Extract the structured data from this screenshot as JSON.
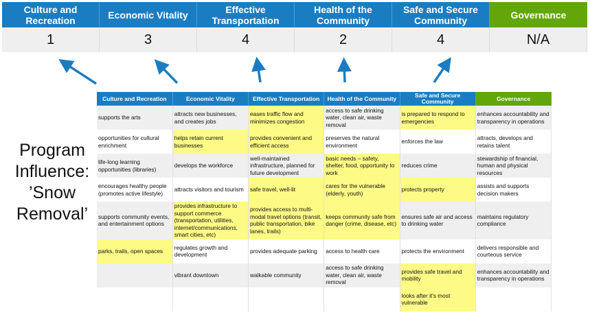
{
  "scores": {
    "headers": [
      "Culture and Recreation",
      "Economic Vitality",
      "Effective Transportation",
      "Health of the Community",
      "Safe and Secure Community",
      "Governance"
    ],
    "values": [
      "1",
      "3",
      "4",
      "2",
      "4",
      "N/A"
    ]
  },
  "program_label": {
    "line1": "Program",
    "line2": "Influence:",
    "line3": "’Snow",
    "line4": "Removal’"
  },
  "colors": {
    "blue_header": "#1b7dc1",
    "green_header": "#62a60a",
    "highlight": "#fdfa86",
    "row_shade": "#efefef",
    "arrow": "#1b7dc1"
  },
  "table": {
    "headers": [
      "Culture and Recreation",
      "Economic Vitality",
      "Effective Transportation",
      "Health of the Community",
      "Safe and Secure Community",
      "Governance"
    ],
    "rows": [
      [
        {
          "t": "supports the arts",
          "hl": false
        },
        {
          "t": "attracts new businesses, and creates jobs",
          "hl": false
        },
        {
          "t": "eases traffic flow and minimizes congestion",
          "hl": true
        },
        {
          "t": "access to safe drinking water, clean air, waste removal",
          "hl": false
        },
        {
          "t": "is prepared to respond to emergencies",
          "hl": true
        },
        {
          "t": "enhances accountability and transparency in operations",
          "hl": false
        }
      ],
      [
        {
          "t": "opportunities for cultural enrichment",
          "hl": false
        },
        {
          "t": "helps retain current businesses",
          "hl": true
        },
        {
          "t": "provides convenient and efficient access",
          "hl": true
        },
        {
          "t": "preserves the natural environment",
          "hl": false
        },
        {
          "t": "enforces the law",
          "hl": false
        },
        {
          "t": "attracts, develops and retains talent",
          "hl": false
        }
      ],
      [
        {
          "t": "life-long learning opportunities (libraries)",
          "hl": false
        },
        {
          "t": "develops the workforce",
          "hl": false
        },
        {
          "t": "well-maintained infrastructure, planned for future development",
          "hl": false
        },
        {
          "t": "basic needs – safety, shelter, food, opportunity to work",
          "hl": true
        },
        {
          "t": "reduces crime",
          "hl": false
        },
        {
          "t": "stewardship of financial, human and physical resources",
          "hl": false
        }
      ],
      [
        {
          "t": "encourages healthy people (promotes active lifestyle)",
          "hl": false
        },
        {
          "t": "attracts visitors and tourism",
          "hl": false
        },
        {
          "t": "safe travel, well-lit",
          "hl": true
        },
        {
          "t": "cares for the vulnerable (elderly, youth)",
          "hl": true
        },
        {
          "t": "protects property",
          "hl": true
        },
        {
          "t": "assists and supports decision makers",
          "hl": false
        }
      ],
      [
        {
          "t": "supports community events, and entertainment options",
          "hl": false
        },
        {
          "t": "provides infrastructure to support commerce (transportation, utilities, internet/communications, smart cities, etc)",
          "hl": true
        },
        {
          "t": "provides access to multi-modal travel options (transit, public transportation, bike lanes, trails)",
          "hl": true
        },
        {
          "t": "keeps community safe from danger (crime, disease, etc)",
          "hl": true
        },
        {
          "t": "ensures safe air and access to drinking water",
          "hl": false
        },
        {
          "t": "maintains regulatory compliance",
          "hl": false
        }
      ],
      [
        {
          "t": "parks, trails, open spaces",
          "hl": true
        },
        {
          "t": "regulates growth and development",
          "hl": false
        },
        {
          "t": "provides adequate parking",
          "hl": false
        },
        {
          "t": "access to health care",
          "hl": false
        },
        {
          "t": "protects the environment",
          "hl": false
        },
        {
          "t": "delivers responsible and courteous service",
          "hl": false
        }
      ],
      [
        {
          "t": "",
          "hl": false
        },
        {
          "t": "vibrant downtown",
          "hl": false
        },
        {
          "t": "walkable community",
          "hl": false
        },
        {
          "t": "access to safe drinking water, clean air, waste removal",
          "hl": false
        },
        {
          "t": "provides safe travel and mobility",
          "hl": true
        },
        {
          "t": "enhances accountability and transparency in operations",
          "hl": false
        }
      ],
      [
        {
          "t": "",
          "hl": false
        },
        {
          "t": "",
          "hl": false
        },
        {
          "t": "",
          "hl": false
        },
        {
          "t": "",
          "hl": false
        },
        {
          "t": "looks after it's most vulnerable",
          "hl": true
        },
        {
          "t": "",
          "hl": false
        }
      ]
    ]
  }
}
